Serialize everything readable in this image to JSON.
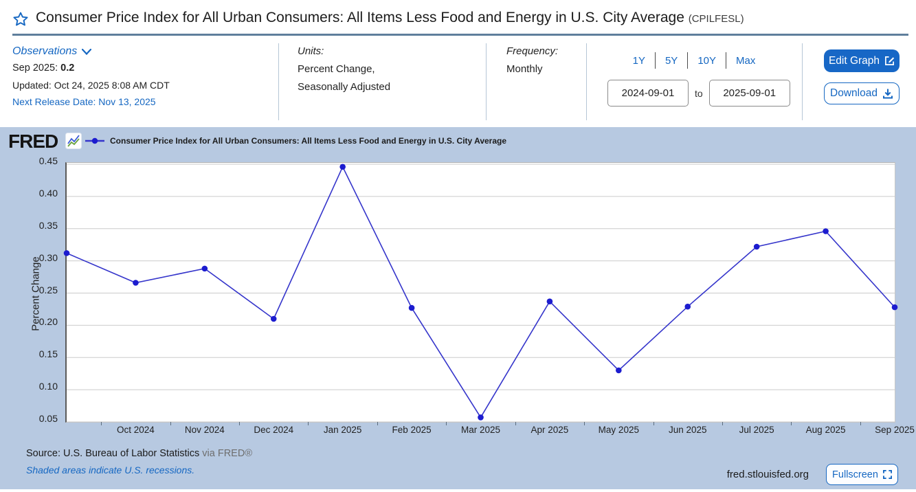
{
  "title": {
    "text": "Consumer Price Index for All Urban Consumers: All Items Less Food and Energy in U.S. City Average",
    "code": "(CPILFESL)"
  },
  "observations": {
    "label": "Observations",
    "latest_label": "Sep 2025: ",
    "latest_value": "0.2",
    "updated": "Updated: Oct 24, 2025 8:08 AM CDT",
    "next_release": "Next Release Date: Nov 13, 2025"
  },
  "units": {
    "label": "Units:",
    "line1": "Percent Change,",
    "line2": "Seasonally Adjusted"
  },
  "frequency": {
    "label": "Frequency:",
    "value": "Monthly"
  },
  "range": {
    "presets": [
      "1Y",
      "5Y",
      "10Y",
      "Max"
    ],
    "from": "2024-09-01",
    "to_label": "to",
    "to": "2025-09-01"
  },
  "actions": {
    "edit_graph": "Edit Graph",
    "download": "Download",
    "fullscreen": "Fullscreen"
  },
  "chart_header": {
    "logo": "FRED",
    "legend": "Consumer Price Index for All Urban Consumers: All Items Less Food and Energy in U.S. City Average"
  },
  "footer": {
    "source": "Source: U.S. Bureau of Labor Statistics",
    "via": " via FRED®",
    "recessions_note": "Shaded areas indicate U.S. recessions.",
    "site": "fred.stlouisfed.org"
  },
  "colors": {
    "line": "#3535cb",
    "marker": "#1c1ccf",
    "grid": "#cbcbcb",
    "panel_bg": "#b7c9e1",
    "link_blue": "#1567c2",
    "button_blue": "#1767c6"
  },
  "chart_data": {
    "type": "line",
    "title": "Consumer Price Index for All Urban Consumers: All Items Less Food and Energy in U.S. City Average",
    "xlabel": "",
    "ylabel": "Percent Change",
    "x": [
      "Sep 2024",
      "Oct 2024",
      "Nov 2024",
      "Dec 2024",
      "Jan 2025",
      "Feb 2025",
      "Mar 2025",
      "Apr 2025",
      "May 2025",
      "Jun 2025",
      "Jul 2025",
      "Aug 2025",
      "Sep 2025"
    ],
    "values": [
      0.312,
      0.266,
      0.288,
      0.21,
      0.446,
      0.227,
      0.057,
      0.237,
      0.13,
      0.229,
      0.322,
      0.346,
      0.228
    ],
    "yticks": [
      0.05,
      0.1,
      0.15,
      0.2,
      0.25,
      0.3,
      0.35,
      0.4,
      0.45
    ],
    "ylim": [
      0.05,
      0.45
    ],
    "grid": true,
    "legend_position": "top"
  }
}
